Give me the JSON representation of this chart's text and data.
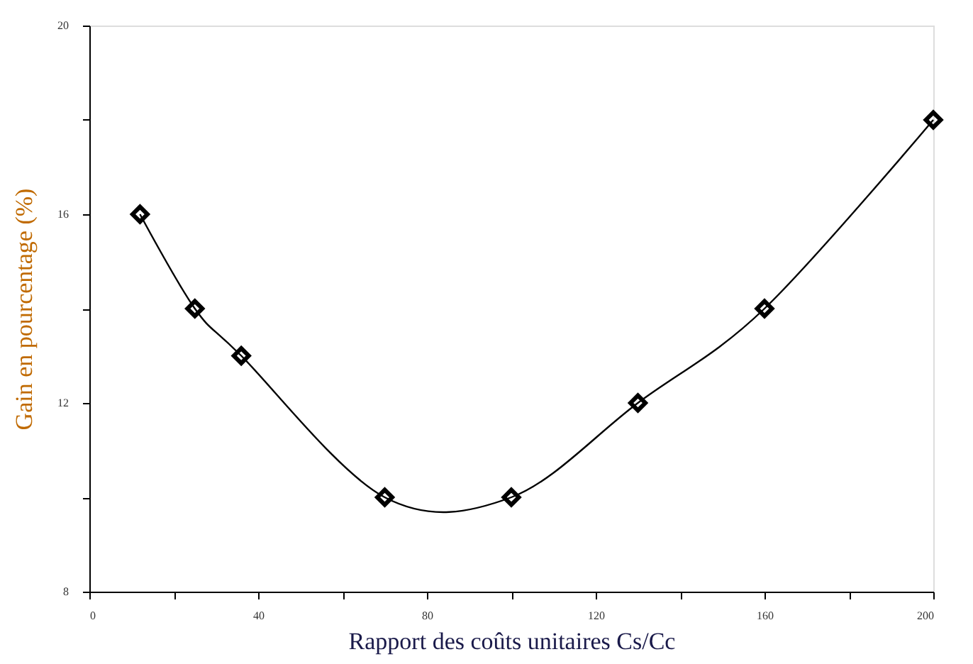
{
  "chart_data": {
    "type": "line",
    "xlabel": "Rapport des coûts unitaires Cs/Cc",
    "ylabel": "Gain en pourcentage (%)",
    "x": [
      12,
      25,
      36,
      70,
      100,
      130,
      160,
      200
    ],
    "series": [
      {
        "color": "#000000",
        "values": [
          16,
          14,
          13,
          10,
          10,
          12,
          14,
          18
        ]
      }
    ],
    "xlim": [
      0,
      200
    ],
    "ylim": [
      8,
      20
    ],
    "xticks": [
      0,
      {
        "value": 20,
        "label": null
      },
      40,
      {
        "value": 60,
        "label": null
      },
      80,
      {
        "value": 100,
        "label": null
      },
      120,
      {
        "value": 140,
        "label": null
      },
      160,
      {
        "value": 180,
        "label": null
      },
      200
    ],
    "yticks": [
      8,
      {
        "value": 10,
        "label": null
      },
      12,
      {
        "value": 14,
        "label": null
      },
      16,
      {
        "value": 18,
        "label": null
      },
      20
    ],
    "marker": "diamond",
    "line_style": "solid",
    "grid": false
  }
}
